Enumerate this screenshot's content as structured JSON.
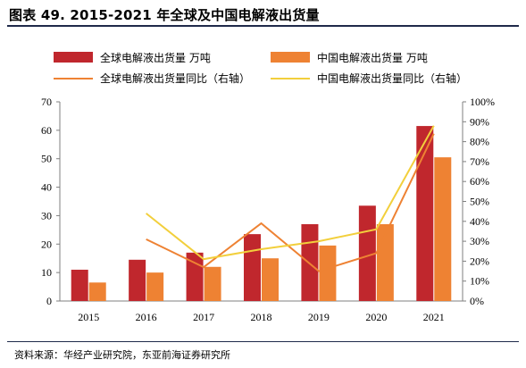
{
  "title": "图表 49. 2015-2021 年全球及中国电解液出货量",
  "source": "资料来源：华经产业研究院，东亚前海证券研究所",
  "colors": {
    "global_bar": "#c0272d",
    "china_bar": "#ee8233",
    "global_line": "#ee8233",
    "china_line": "#f2cf3c",
    "axis": "#7f7f7f",
    "rule": "#1f2a4a"
  },
  "chart_data": {
    "type": "bar",
    "categories": [
      "2015",
      "2016",
      "2017",
      "2018",
      "2019",
      "2020",
      "2021"
    ],
    "series": [
      {
        "name": "全球电解液出货量 万吨",
        "kind": "bar",
        "axis": "left",
        "values": [
          11,
          14.5,
          17,
          23.5,
          27,
          33.5,
          61.5
        ]
      },
      {
        "name": "中国电解液出货量 万吨",
        "kind": "bar",
        "axis": "left",
        "values": [
          6.5,
          10,
          12,
          15,
          19.5,
          27,
          50.5
        ]
      },
      {
        "name": "全球电解液出货量同比（右轴）",
        "kind": "line",
        "axis": "right",
        "values": [
          null,
          31,
          17,
          39,
          15,
          24,
          84
        ]
      },
      {
        "name": "中国电解液出货量同比（右轴）",
        "kind": "line",
        "axis": "right",
        "values": [
          null,
          44,
          21,
          26,
          30,
          36,
          88
        ]
      }
    ],
    "y_left": {
      "min": 0,
      "max": 70,
      "ticks": [
        "0",
        "10",
        "20",
        "30",
        "40",
        "50",
        "60",
        "70"
      ]
    },
    "y_right": {
      "min": 0,
      "max": 100,
      "ticks": [
        "0%",
        "10%",
        "20%",
        "30%",
        "40%",
        "50%",
        "60%",
        "70%",
        "80%",
        "90%",
        "100%"
      ]
    },
    "legend_position": "top",
    "grid": false
  }
}
